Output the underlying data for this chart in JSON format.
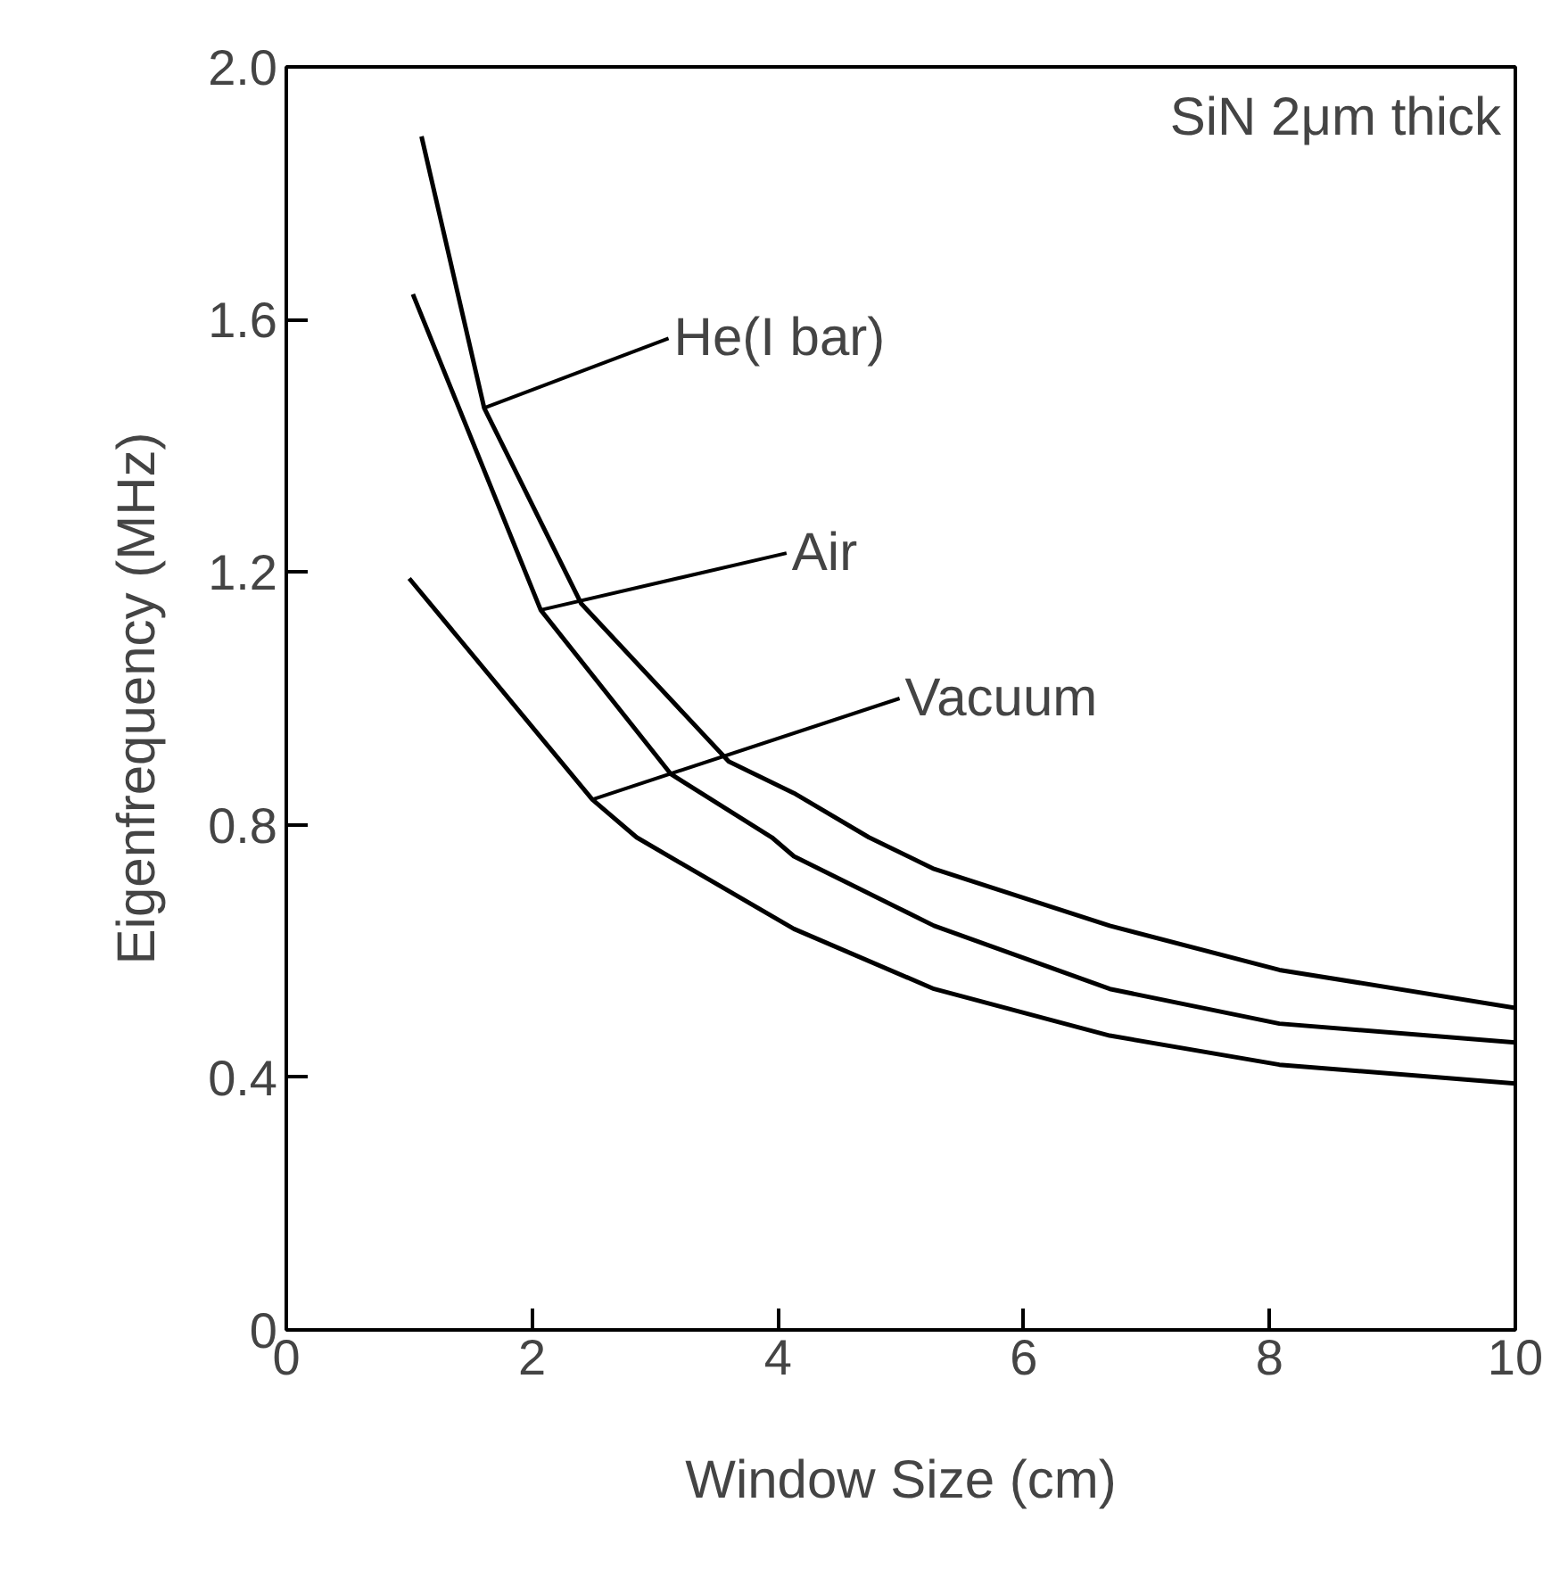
{
  "chart_data": {
    "type": "line",
    "xlabel": "Window Size (cm)",
    "ylabel": "Eigenfrequency (MHz)",
    "xlim": [
      0,
      10
    ],
    "ylim": [
      0,
      2.0
    ],
    "xticks": [
      0,
      2,
      4,
      6,
      8,
      10
    ],
    "yticks": [
      0,
      0.4,
      0.8,
      1.2,
      1.6,
      {
        "value": 2.0,
        "label": "2.0"
      }
    ],
    "grid": false,
    "marker": "none",
    "line_style": "solid",
    "series": [
      {
        "color": "#000000",
        "x": [
          1.1,
          1.61,
          2.4,
          3.6,
          4.13,
          4.74,
          5.27,
          6.7,
          8.08,
          10
        ],
        "values": [
          1.89,
          1.46,
          1.15,
          0.9,
          0.85,
          0.78,
          0.73,
          0.64,
          0.57,
          0.51
        ]
      },
      {
        "color": "#000000",
        "x": [
          1.03,
          2.07,
          3.13,
          3.95,
          4.13,
          5.27,
          6.7,
          8.08,
          10
        ],
        "values": [
          1.64,
          1.14,
          0.88,
          0.78,
          0.75,
          0.64,
          0.54,
          0.485,
          0.455
        ]
      },
      {
        "color": "#000000",
        "x": [
          1.0,
          2.49,
          2.85,
          4.13,
          5.27,
          6.7,
          8.08,
          10
        ],
        "values": [
          1.19,
          0.84,
          0.78,
          0.635,
          0.54,
          0.466,
          0.42,
          0.39
        ]
      }
    ],
    "annotations": [
      {
        "text": "He(I bar)",
        "x": 1.61,
        "y": 1.46
      },
      {
        "text": "Air",
        "x": 2.07,
        "y": 1.14
      },
      {
        "text": "Vacuum",
        "x": 2.49,
        "y": 0.84
      },
      "SiN 2μm thick"
    ]
  }
}
